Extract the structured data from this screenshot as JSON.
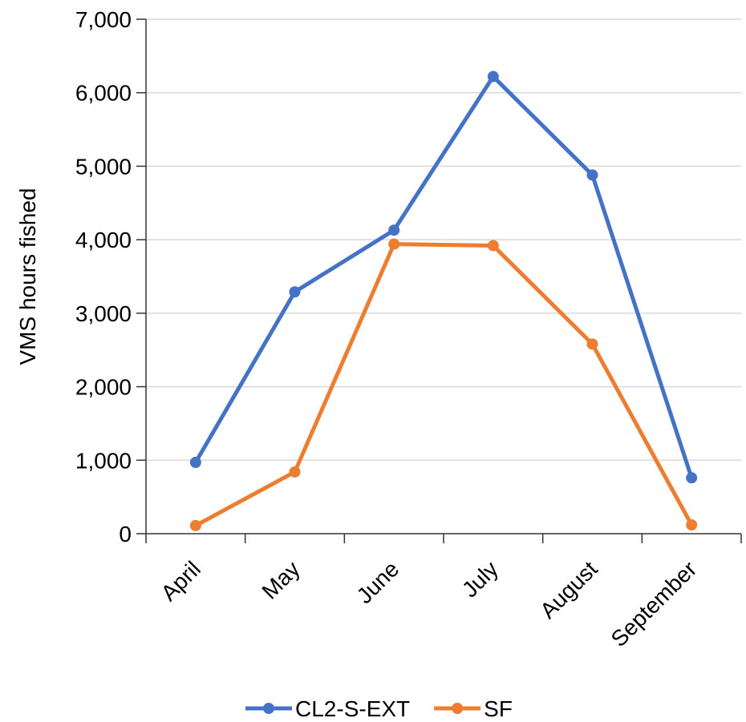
{
  "chart_data": {
    "type": "line",
    "title": "",
    "xlabel": "",
    "ylabel": "VMS hours fished",
    "categories": [
      "April",
      "May",
      "June",
      "July",
      "August",
      "September"
    ],
    "ylim": [
      0,
      7000
    ],
    "yticks": [
      0,
      1000,
      2000,
      3000,
      4000,
      5000,
      6000,
      7000
    ],
    "ytick_labels": [
      "0",
      "1,000",
      "2,000",
      "3,000",
      "4,000",
      "5,000",
      "6,000",
      "7,000"
    ],
    "grid": true,
    "legend_position": "bottom",
    "series": [
      {
        "name": "CL2-S-EXT",
        "color": "#4472C4",
        "values": [
          970,
          3290,
          4130,
          6220,
          4880,
          760
        ]
      },
      {
        "name": "SF",
        "color": "#ED7D31",
        "values": [
          110,
          840,
          3940,
          3920,
          2580,
          120
        ]
      }
    ]
  }
}
